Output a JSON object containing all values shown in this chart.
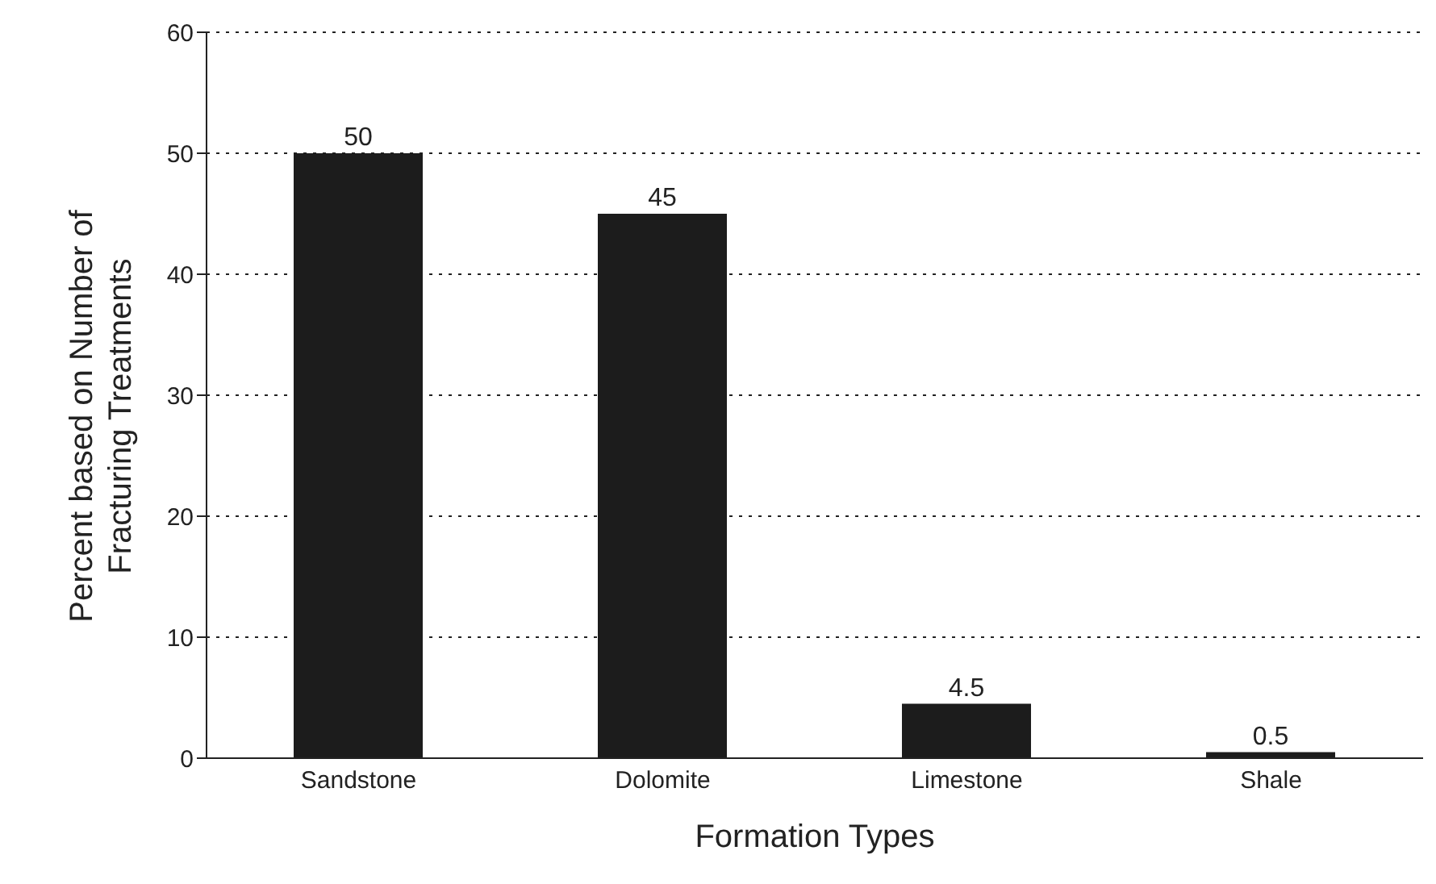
{
  "chart_data": {
    "type": "bar",
    "xlabel": "Formation Types",
    "ylabel": "Percent based on Number of Fracturing Treatments",
    "categories": [
      "Sandstone",
      "Dolomite",
      "Limestone",
      "Shale"
    ],
    "values": [
      50,
      45,
      4.5,
      0.5
    ],
    "color": "#1c1c1c",
    "ylim": [
      0,
      60
    ],
    "yticks": [
      0,
      10,
      20,
      30,
      40,
      50,
      60
    ],
    "grid": "y",
    "data_labels": true,
    "legend": false
  }
}
